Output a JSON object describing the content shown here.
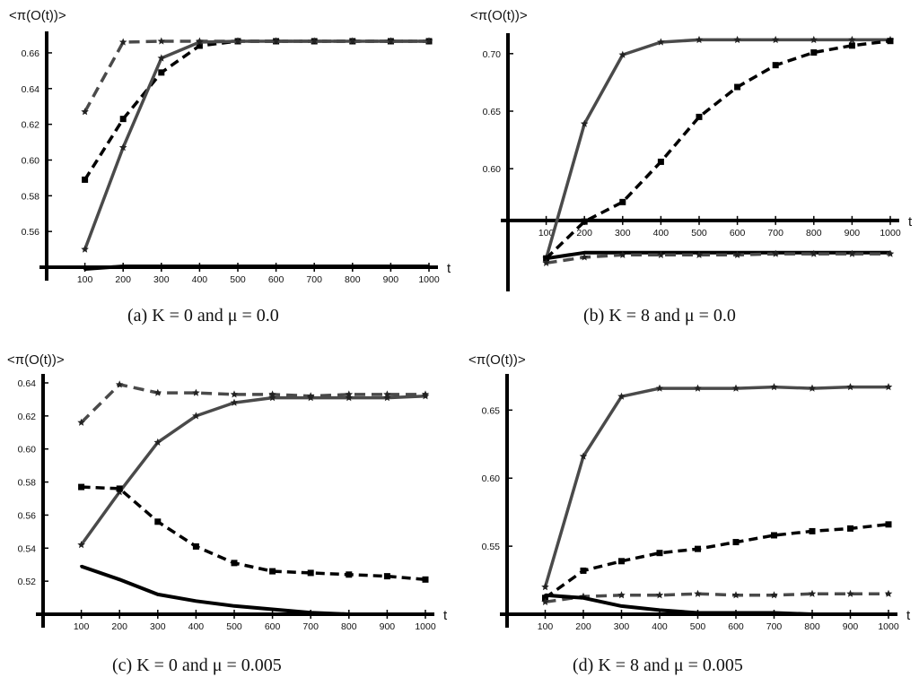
{
  "figure": {
    "captions": [
      "(a)  K = 0 and μ = 0.0",
      "(b)  K = 8 and μ = 0.0",
      "(c)  K = 0 and μ = 0.005",
      "(d)  K = 8 and μ = 0.005"
    ]
  },
  "chart_data": [
    {
      "type": "line",
      "ylabel": "<π(O(t))>",
      "xlabel": "t",
      "x": [
        100,
        200,
        300,
        400,
        500,
        600,
        700,
        800,
        900,
        1000
      ],
      "xlim": [
        0,
        1000
      ],
      "ylim": [
        0.54,
        0.667
      ],
      "x_axis_at": 0.54,
      "yticks": [
        0.56,
        0.58,
        0.6,
        0.62,
        0.64,
        0.66
      ],
      "ytick_labels": [
        "0.56",
        "0.58",
        "0.60",
        "0.62",
        "0.64",
        "0.66"
      ],
      "grid": false,
      "series": [
        {
          "style": "gray-dashed",
          "values": [
            0.627,
            0.666,
            0.6665,
            0.6665,
            0.6665,
            0.6665,
            0.6665,
            0.6665,
            0.6665,
            0.6665
          ]
        },
        {
          "style": "black-dashed",
          "values": [
            0.589,
            0.623,
            0.649,
            0.664,
            0.6665,
            0.6665,
            0.6665,
            0.6665,
            0.6665,
            0.6665
          ]
        },
        {
          "style": "gray-solid",
          "values": [
            0.55,
            0.607,
            0.657,
            0.666,
            0.6665,
            0.6665,
            0.6665,
            0.6665,
            0.6665,
            0.6665
          ]
        },
        {
          "style": "black-solid",
          "values": [
            0.539,
            0.5405,
            0.5405,
            0.5405,
            0.5405,
            0.5405,
            0.5405,
            0.5405,
            0.5405,
            0.5405
          ]
        }
      ]
    },
    {
      "type": "line",
      "ylabel": "<π(O(t))>",
      "xlabel": "t",
      "x": [
        100,
        200,
        300,
        400,
        500,
        600,
        700,
        800,
        900,
        1000
      ],
      "xlim": [
        0,
        1000
      ],
      "ylim": [
        0.505,
        0.71
      ],
      "x_axis_at": 0.555,
      "yticks": [
        0.6,
        0.65,
        0.7
      ],
      "ytick_labels": [
        "0.60",
        "0.65",
        "0.70"
      ],
      "grid": false,
      "series": [
        {
          "style": "gray-solid",
          "values": [
            0.522,
            0.639,
            0.699,
            0.71,
            0.712,
            0.712,
            0.712,
            0.712,
            0.712,
            0.712
          ]
        },
        {
          "style": "black-dashed",
          "values": [
            0.522,
            0.554,
            0.571,
            0.606,
            0.645,
            0.671,
            0.69,
            0.701,
            0.707,
            0.711
          ]
        },
        {
          "style": "black-solid",
          "values": [
            0.522,
            0.527,
            0.527,
            0.527,
            0.527,
            0.527,
            0.527,
            0.527,
            0.527,
            0.527
          ]
        },
        {
          "style": "gray-dashed",
          "values": [
            0.518,
            0.523,
            0.525,
            0.525,
            0.525,
            0.525,
            0.526,
            0.526,
            0.526,
            0.526
          ]
        }
      ]
    },
    {
      "type": "line",
      "ylabel": "<π(O(t))>",
      "xlabel": "t",
      "x": [
        100,
        200,
        300,
        400,
        500,
        600,
        700,
        800,
        900,
        1000
      ],
      "xlim": [
        0,
        1000
      ],
      "ylim": [
        0.5,
        0.64
      ],
      "x_axis_at": 0.5,
      "yticks": [
        0.52,
        0.54,
        0.56,
        0.58,
        0.6,
        0.62,
        0.64
      ],
      "ytick_labels": [
        "0.52",
        "0.54",
        "0.56",
        "0.58",
        "0.60",
        "0.62",
        "0.64"
      ],
      "grid": false,
      "series": [
        {
          "style": "gray-dashed",
          "values": [
            0.616,
            0.639,
            0.634,
            0.634,
            0.633,
            0.633,
            0.632,
            0.633,
            0.633,
            0.633
          ]
        },
        {
          "style": "gray-solid",
          "values": [
            0.542,
            0.574,
            0.604,
            0.62,
            0.628,
            0.631,
            0.631,
            0.631,
            0.631,
            0.632
          ]
        },
        {
          "style": "black-dashed",
          "values": [
            0.577,
            0.576,
            0.556,
            0.541,
            0.531,
            0.526,
            0.525,
            0.524,
            0.523,
            0.521
          ]
        },
        {
          "style": "black-solid",
          "values": [
            0.529,
            0.521,
            0.512,
            0.508,
            0.505,
            0.503,
            0.501,
            0.5,
            0.5,
            0.5
          ]
        }
      ]
    },
    {
      "type": "line",
      "ylabel": "<π(O(t))>",
      "xlabel": "t",
      "x": [
        100,
        200,
        300,
        400,
        500,
        600,
        700,
        800,
        900,
        1000
      ],
      "xlim": [
        0,
        1000
      ],
      "ylim": [
        0.5,
        0.67
      ],
      "x_axis_at": 0.5,
      "yticks": [
        0.55,
        0.6,
        0.65
      ],
      "ytick_labels": [
        "0.55",
        "0.60",
        "0.65"
      ],
      "grid": false,
      "series": [
        {
          "style": "gray-solid",
          "values": [
            0.52,
            0.616,
            0.66,
            0.666,
            0.666,
            0.666,
            0.667,
            0.666,
            0.667,
            0.667
          ]
        },
        {
          "style": "black-dashed",
          "values": [
            0.512,
            0.532,
            0.539,
            0.545,
            0.548,
            0.553,
            0.558,
            0.561,
            0.563,
            0.566
          ]
        },
        {
          "style": "gray-dashed",
          "values": [
            0.509,
            0.513,
            0.514,
            0.514,
            0.515,
            0.514,
            0.514,
            0.515,
            0.515,
            0.515
          ]
        },
        {
          "style": "black-solid",
          "values": [
            0.514,
            0.512,
            0.506,
            0.503,
            0.501,
            0.501,
            0.501,
            0.5,
            0.5,
            0.5
          ]
        }
      ]
    }
  ]
}
